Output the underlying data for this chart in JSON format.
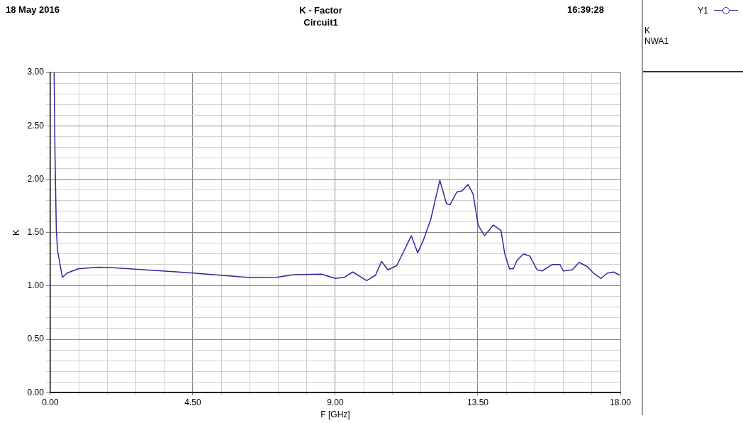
{
  "chart_data": {
    "type": "line",
    "title": "K - Factor",
    "subtitle": "Circuit1",
    "xlabel": "F [GHz]",
    "ylabel": "K",
    "annotations": [
      "18 May 2016",
      "16:39:28",
      "K",
      "NWA1"
    ],
    "x": [
      0.12,
      0.15,
      0.19,
      0.23,
      0.38,
      0.53,
      0.88,
      1.52,
      1.99,
      3.02,
      4.52,
      6.35,
      7.14,
      7.69,
      8.56,
      9.0,
      9.28,
      9.55,
      9.99,
      10.27,
      10.46,
      10.66,
      10.94,
      11.4,
      11.6,
      11.77,
      12.01,
      12.3,
      12.51,
      12.62,
      12.84,
      13.0,
      13.19,
      13.35,
      13.51,
      13.71,
      13.99,
      14.23,
      14.35,
      14.5,
      14.62,
      14.74,
      14.94,
      15.14,
      15.37,
      15.53,
      15.85,
      16.09,
      16.2,
      16.48,
      16.7,
      16.96,
      17.15,
      17.39,
      17.59,
      17.79,
      17.98
    ],
    "series": [
      {
        "name": "Y1",
        "color": "#2b2b9c",
        "values": [
          3.0,
          2.21,
          1.52,
          1.33,
          1.08,
          1.12,
          1.16,
          1.175,
          1.17,
          1.15,
          1.12,
          1.076,
          1.08,
          1.105,
          1.11,
          1.07,
          1.08,
          1.13,
          1.05,
          1.1,
          1.23,
          1.15,
          1.19,
          1.47,
          1.31,
          1.42,
          1.62,
          1.99,
          1.77,
          1.76,
          1.88,
          1.89,
          1.95,
          1.86,
          1.57,
          1.47,
          1.57,
          1.52,
          1.3,
          1.16,
          1.16,
          1.24,
          1.3,
          1.28,
          1.15,
          1.14,
          1.2,
          1.2,
          1.14,
          1.15,
          1.22,
          1.18,
          1.12,
          1.07,
          1.12,
          1.13,
          1.1
        ]
      }
    ],
    "xlim": [
      0,
      18
    ],
    "ylim": [
      0,
      3
    ],
    "xticks": [
      {
        "value": 0,
        "label": "0.00"
      },
      {
        "value": 0.9,
        "label": null
      },
      {
        "value": 1.8,
        "label": null
      },
      {
        "value": 2.7,
        "label": null
      },
      {
        "value": 3.6,
        "label": null
      },
      {
        "value": 4.5,
        "label": "4.50"
      },
      {
        "value": 5.4,
        "label": null
      },
      {
        "value": 6.3,
        "label": null
      },
      {
        "value": 7.2,
        "label": null
      },
      {
        "value": 8.1,
        "label": null
      },
      {
        "value": 9,
        "label": "9.00"
      },
      {
        "value": 9.9,
        "label": null
      },
      {
        "value": 10.8,
        "label": null
      },
      {
        "value": 11.7,
        "label": null
      },
      {
        "value": 12.6,
        "label": null
      },
      {
        "value": 13.5,
        "label": "13.50"
      },
      {
        "value": 14.4,
        "label": null
      },
      {
        "value": 15.3,
        "label": null
      },
      {
        "value": 16.2,
        "label": null
      },
      {
        "value": 17.1,
        "label": null
      },
      {
        "value": 18,
        "label": "18.00"
      }
    ],
    "yticks": [
      {
        "value": 0,
        "label": "0.00"
      },
      {
        "value": 0.1,
        "label": null
      },
      {
        "value": 0.2,
        "label": null
      },
      {
        "value": 0.3,
        "label": null
      },
      {
        "value": 0.4,
        "label": null
      },
      {
        "value": 0.5,
        "label": "0.50"
      },
      {
        "value": 0.6,
        "label": null
      },
      {
        "value": 0.7,
        "label": null
      },
      {
        "value": 0.8,
        "label": null
      },
      {
        "value": 0.9,
        "label": null
      },
      {
        "value": 1,
        "label": "1.00"
      },
      {
        "value": 1.1,
        "label": null
      },
      {
        "value": 1.2,
        "label": null
      },
      {
        "value": 1.3,
        "label": null
      },
      {
        "value": 1.4,
        "label": null
      },
      {
        "value": 1.5,
        "label": "1.50"
      },
      {
        "value": 1.6,
        "label": null
      },
      {
        "value": 1.7,
        "label": null
      },
      {
        "value": 1.8,
        "label": null
      },
      {
        "value": 1.9,
        "label": null
      },
      {
        "value": 2,
        "label": "2.00"
      },
      {
        "value": 2.1,
        "label": null
      },
      {
        "value": 2.2,
        "label": null
      },
      {
        "value": 2.3,
        "label": null
      },
      {
        "value": 2.4,
        "label": null
      },
      {
        "value": 2.5,
        "label": "2.50"
      },
      {
        "value": 2.6,
        "label": null
      },
      {
        "value": 2.7,
        "label": null
      },
      {
        "value": 2.8,
        "label": null
      },
      {
        "value": 2.9,
        "label": null
      },
      {
        "value": 3,
        "label": "3.00"
      }
    ],
    "grid": true,
    "legend": "right",
    "marker": "none",
    "line_style": "solid"
  }
}
